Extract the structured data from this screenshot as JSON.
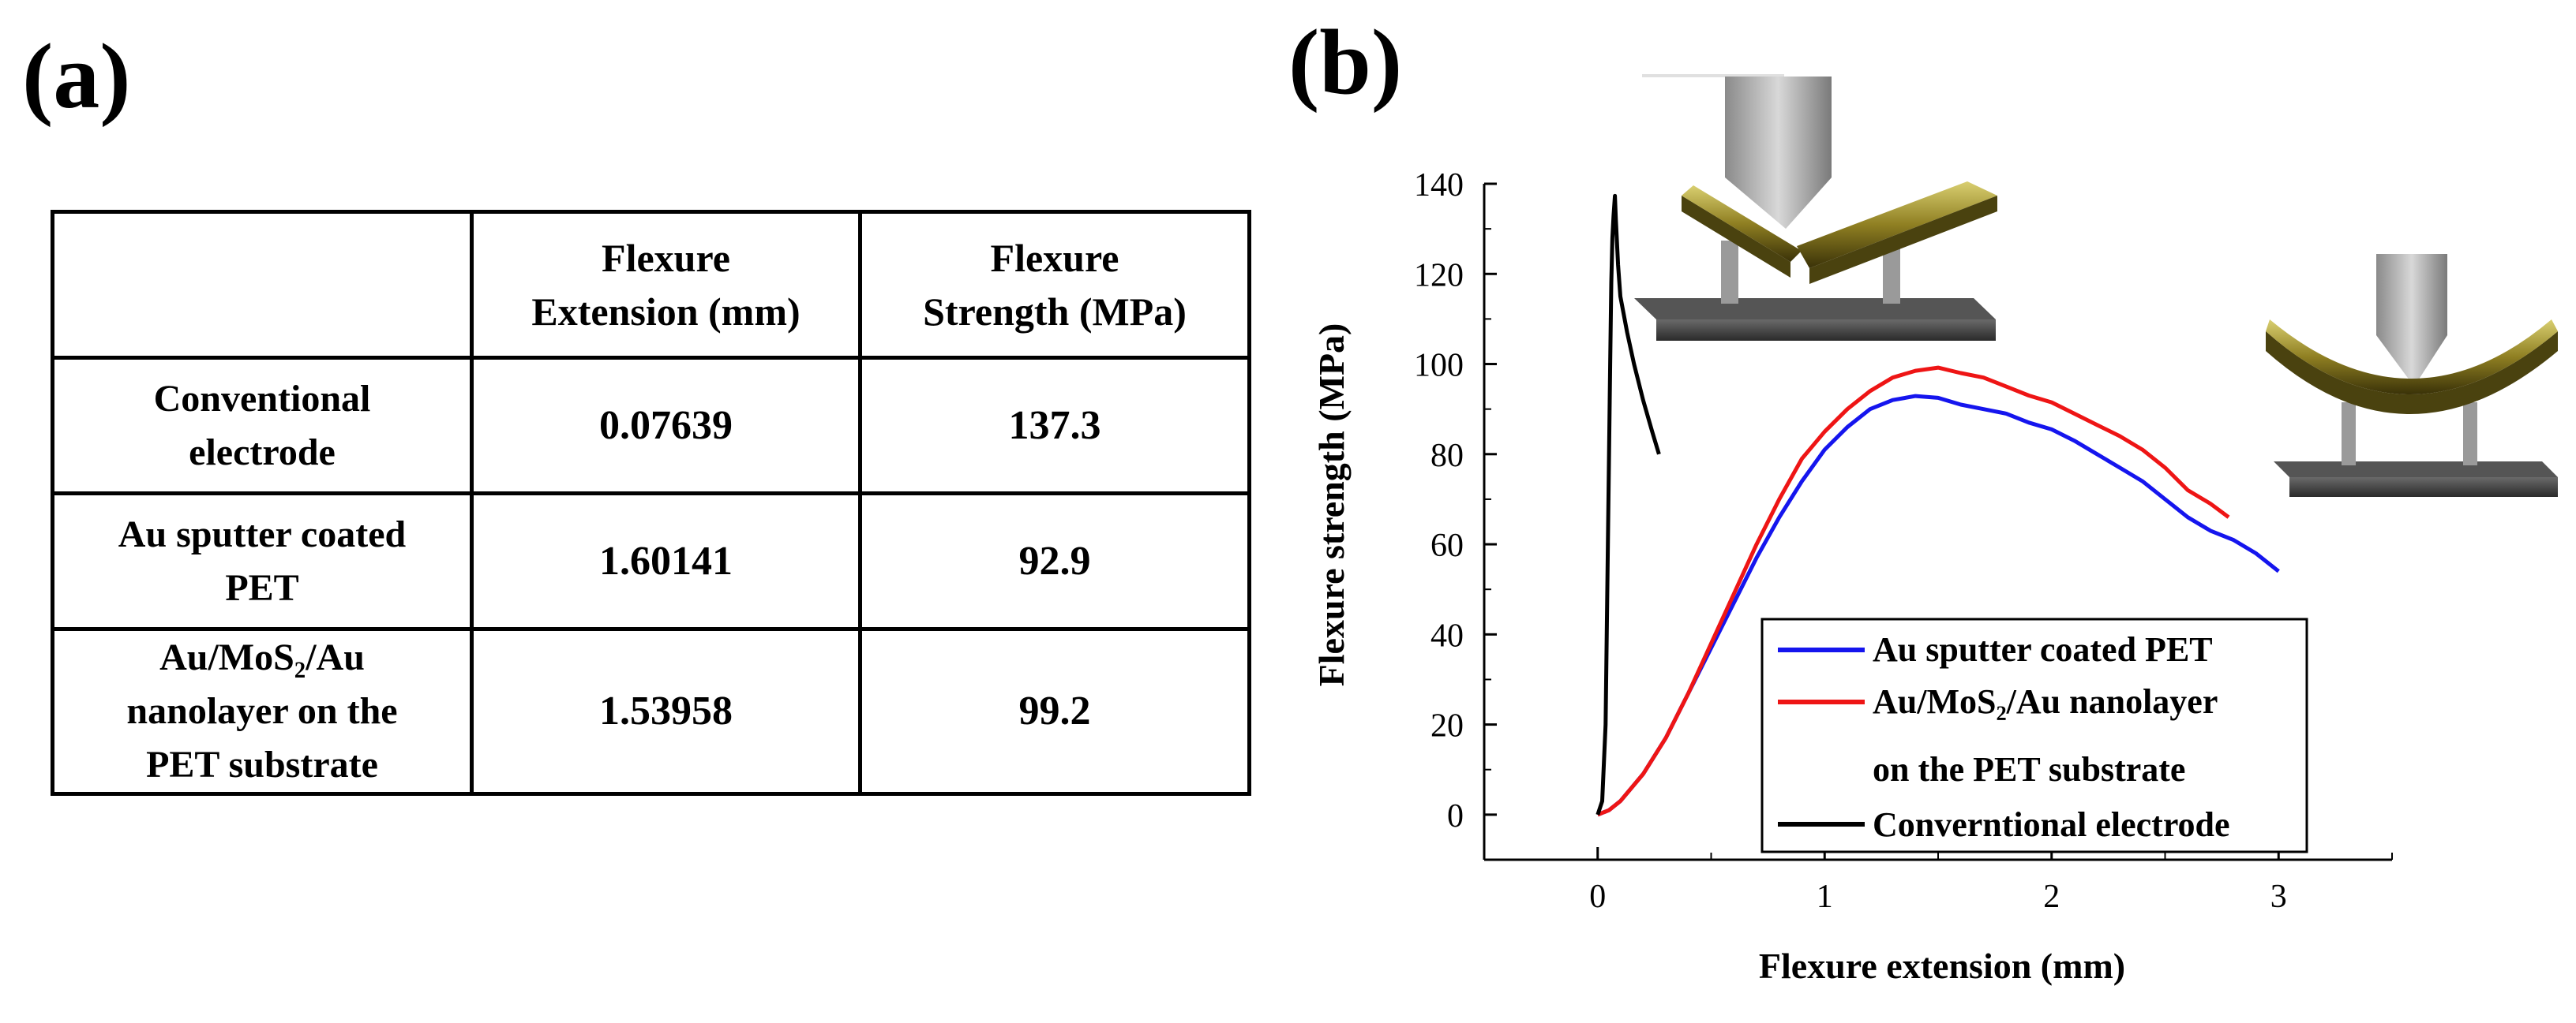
{
  "panel_a_label": "(a)",
  "panel_b_label": "(b)",
  "table": {
    "columns": [
      "",
      "Flexure Extension (mm)",
      "Flexure Strength (MPa)"
    ],
    "header_lines": [
      [
        "Flexure",
        "Extension (mm)"
      ],
      [
        "Flexure",
        "Strength (MPa)"
      ]
    ],
    "rows": [
      {
        "label_lines": [
          "Conventional",
          "electrode"
        ],
        "extension": "0.07639",
        "strength": "137.3"
      },
      {
        "label_lines": [
          "Au sputter coated",
          "PET"
        ],
        "extension": "1.60141",
        "strength": "92.9"
      },
      {
        "label_lines": [
          "Au/MoS₂/Au",
          "nanolayer  on the",
          "PET substrate"
        ],
        "extension": "1.53958",
        "strength": "99.2"
      }
    ]
  },
  "chart_data": {
    "type": "line",
    "xlabel": "Flexure extension (mm)",
    "ylabel": "Flexure strength (MPa)",
    "xlim": [
      -0.5,
      3.5
    ],
    "ylim": [
      -10,
      140
    ],
    "xticks": [
      0,
      1,
      2,
      3
    ],
    "yticks": [
      0,
      20,
      40,
      60,
      80,
      100,
      120,
      140
    ],
    "legend_position": "lower-right",
    "series": [
      {
        "name": "Au sputter coated PET",
        "color": "#1515ee",
        "x": [
          0,
          0.05,
          0.1,
          0.2,
          0.3,
          0.4,
          0.5,
          0.6,
          0.7,
          0.8,
          0.9,
          1.0,
          1.1,
          1.2,
          1.3,
          1.4,
          1.5,
          1.6,
          1.7,
          1.8,
          1.9,
          2.0,
          2.1,
          2.2,
          2.3,
          2.4,
          2.5,
          2.6,
          2.7,
          2.8,
          2.9,
          3.0
        ],
        "y": [
          0,
          1,
          3,
          9,
          17,
          27,
          37,
          47,
          57,
          66,
          74,
          81,
          86,
          90,
          92,
          92.9,
          92.5,
          91,
          90,
          89,
          87,
          85.5,
          83,
          80,
          77,
          74,
          70,
          66,
          63,
          61,
          58,
          54
        ]
      },
      {
        "name": "Au/MoS2/Au nanolayer on the PET substrate",
        "legend_lines": [
          "Au/MoS₂/Au nanolayer",
          "on the PET substrate"
        ],
        "color": "#ee1515",
        "x": [
          0,
          0.05,
          0.1,
          0.2,
          0.3,
          0.4,
          0.5,
          0.6,
          0.7,
          0.8,
          0.9,
          1.0,
          1.1,
          1.2,
          1.3,
          1.4,
          1.5,
          1.6,
          1.7,
          1.8,
          1.9,
          2.0,
          2.1,
          2.2,
          2.3,
          2.4,
          2.5,
          2.6,
          2.7,
          2.78
        ],
        "y": [
          0,
          1,
          3,
          9,
          17,
          27,
          38,
          49,
          60,
          70,
          79,
          85,
          90,
          94,
          97,
          98.5,
          99.2,
          98,
          97,
          95,
          93,
          91.5,
          89,
          86.5,
          84,
          81,
          77,
          72,
          69,
          66
        ]
      },
      {
        "name": "Converntional electrode",
        "color": "#000000",
        "x": [
          0,
          0.02,
          0.035,
          0.045,
          0.055,
          0.06,
          0.065,
          0.07,
          0.076,
          0.08,
          0.09,
          0.1,
          0.13,
          0.16,
          0.2,
          0.24,
          0.27
        ],
        "y": [
          0,
          3,
          20,
          60,
          100,
          118,
          128,
          133,
          137.3,
          132,
          122,
          115,
          107,
          100,
          92,
          85,
          80
        ]
      }
    ]
  }
}
